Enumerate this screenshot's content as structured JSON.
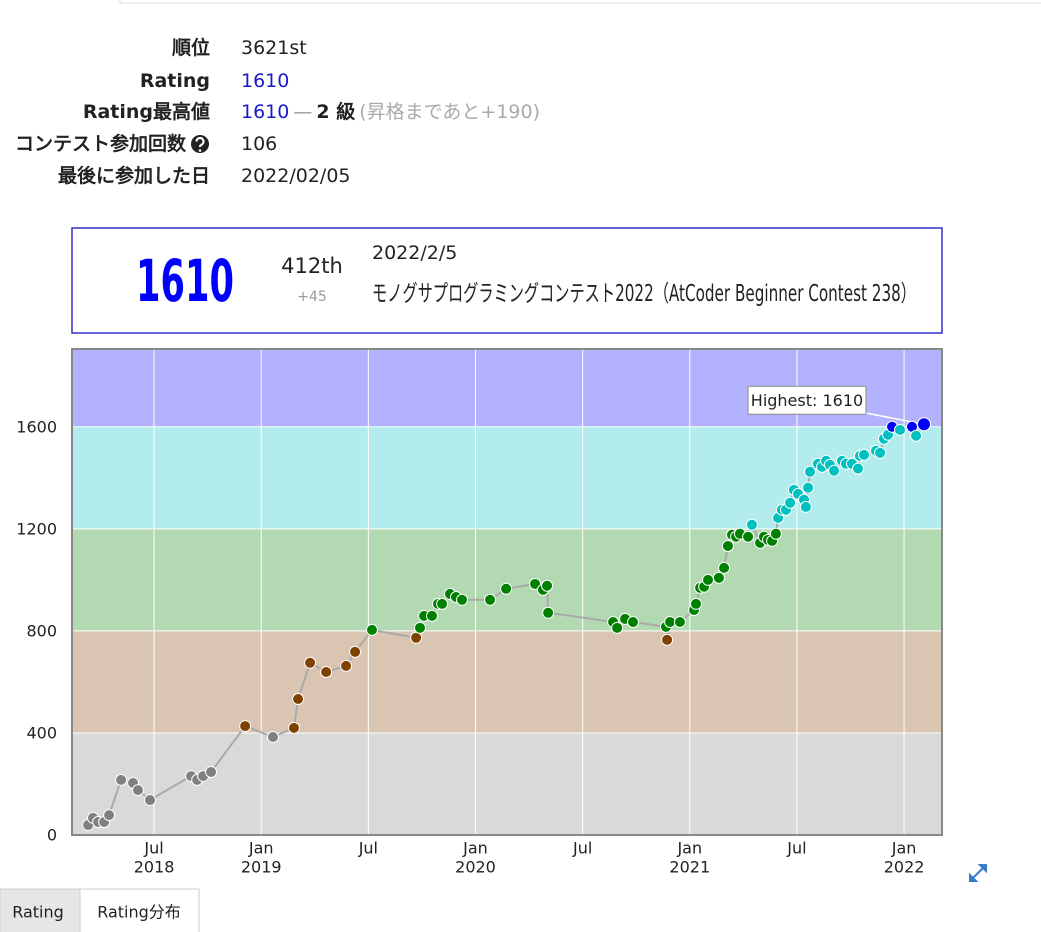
{
  "profile": {
    "rows": [
      {
        "label": "順位",
        "value": "3621st"
      },
      {
        "label": "Rating",
        "value": "1610"
      },
      {
        "label": "Rating最高値",
        "value": "1610",
        "separator": "—",
        "rank": "2 級",
        "note": "(昇格まであと+190)"
      },
      {
        "label": "コンテスト参加回数",
        "value": "106"
      },
      {
        "label": "最後に参加した日",
        "value": "2022/02/05"
      }
    ]
  },
  "status": {
    "rating": "1610",
    "place": "412th",
    "diff": "+45",
    "date": "2022/2/5",
    "contest": "モノグサプログラミングコンテスト2022（AtCoder Beginner Contest 238）"
  },
  "chart_data": {
    "type": "line",
    "x": [
      2018.192,
      2018.215,
      2018.239,
      2018.267,
      2018.29,
      2018.346,
      2018.402,
      2018.425,
      2018.481,
      2018.673,
      2018.701,
      2018.729,
      2018.766,
      2018.925,
      2019.055,
      2019.153,
      2019.172,
      2019.228,
      2019.303,
      2019.396,
      2019.438,
      2019.517,
      2019.723,
      2019.741,
      2019.76,
      2019.797,
      2019.825,
      2019.844,
      2019.881,
      2019.909,
      2019.937,
      2020.068,
      2020.143,
      2020.278,
      2020.315,
      2020.334,
      2020.339,
      2020.642,
      2020.661,
      2020.698,
      2020.735,
      2020.889,
      2020.894,
      2020.908,
      2020.954,
      2021.02,
      2021.029,
      2021.048,
      2021.067,
      2021.085,
      2021.136,
      2021.16,
      2021.178,
      2021.197,
      2021.216,
      2021.234,
      2021.272,
      2021.29,
      2021.328,
      2021.346,
      2021.365,
      2021.384,
      2021.402,
      2021.412,
      2021.43,
      2021.449,
      2021.468,
      2021.486,
      2021.505,
      2021.533,
      2021.542,
      2021.552,
      2021.561,
      2021.598,
      2021.617,
      2021.636,
      2021.654,
      2021.673,
      2021.71,
      2021.729,
      2021.757,
      2021.785,
      2021.794,
      2021.813,
      2021.869,
      2021.888,
      2021.906,
      2021.925,
      2021.944,
      2021.981,
      2022.037,
      2022.056,
      2022.093
    ],
    "values": [
      39,
      67,
      51,
      51,
      78,
      216,
      204,
      176,
      137,
      231,
      216,
      231,
      247,
      427,
      384,
      420,
      533,
      675,
      639,
      663,
      718,
      804,
      773,
      812,
      859,
      859,
      906,
      906,
      945,
      933,
      922,
      922,
      965,
      984,
      961,
      977,
      871,
      835,
      812,
      847,
      835,
      816,
      765,
      835,
      835,
      882,
      906,
      969,
      973,
      1000,
      1008,
      1047,
      1133,
      1177,
      1169,
      1181,
      1169,
      1216,
      1145,
      1169,
      1157,
      1153,
      1181,
      1243,
      1275,
      1275,
      1302,
      1353,
      1337,
      1314,
      1286,
      1361,
      1424,
      1455,
      1443,
      1467,
      1451,
      1428,
      1467,
      1455,
      1455,
      1436,
      1486,
      1490,
      1506,
      1498,
      1553,
      1569,
      1600,
      1588,
      1600,
      1565,
      1610
    ],
    "line_color": "#aaaaaa",
    "annotation": "Highest: 1610",
    "xlim": [
      2018.117,
      2022.177
    ],
    "ylim": [
      0,
      1905
    ],
    "yticks": [
      0,
      400,
      800,
      1200,
      1600
    ],
    "xticks": [
      {
        "value": 2018.5,
        "label": "Jul",
        "sublabel": "2018"
      },
      {
        "value": 2019.0,
        "label": "Jan",
        "sublabel": "2019"
      },
      {
        "value": 2019.5,
        "label": "Jul"
      },
      {
        "value": 2020.0,
        "label": "Jan",
        "sublabel": "2020"
      },
      {
        "value": 2020.5,
        "label": "Jul"
      },
      {
        "value": 2021.0,
        "label": "Jan",
        "sublabel": "2021"
      },
      {
        "value": 2021.5,
        "label": "Jul"
      },
      {
        "value": 2022.0,
        "label": "Jan",
        "sublabel": "2022"
      }
    ],
    "grid": true,
    "bands": [
      {
        "from": 0,
        "to": 400,
        "color": "#d9d9d9",
        "point_color": "#808080"
      },
      {
        "from": 400,
        "to": 800,
        "color": "#d9c5b2",
        "point_color": "#804000"
      },
      {
        "from": 800,
        "to": 1200,
        "color": "#b2d9b2",
        "point_color": "#008000"
      },
      {
        "from": 1200,
        "to": 1600,
        "color": "#b2ecec",
        "point_color": "#00c0c0"
      },
      {
        "from": 1600,
        "to": 2000,
        "color": "#b2b2ff",
        "point_color": "#0000ff"
      }
    ]
  },
  "tabs": [
    "Rating",
    "Rating分布"
  ]
}
